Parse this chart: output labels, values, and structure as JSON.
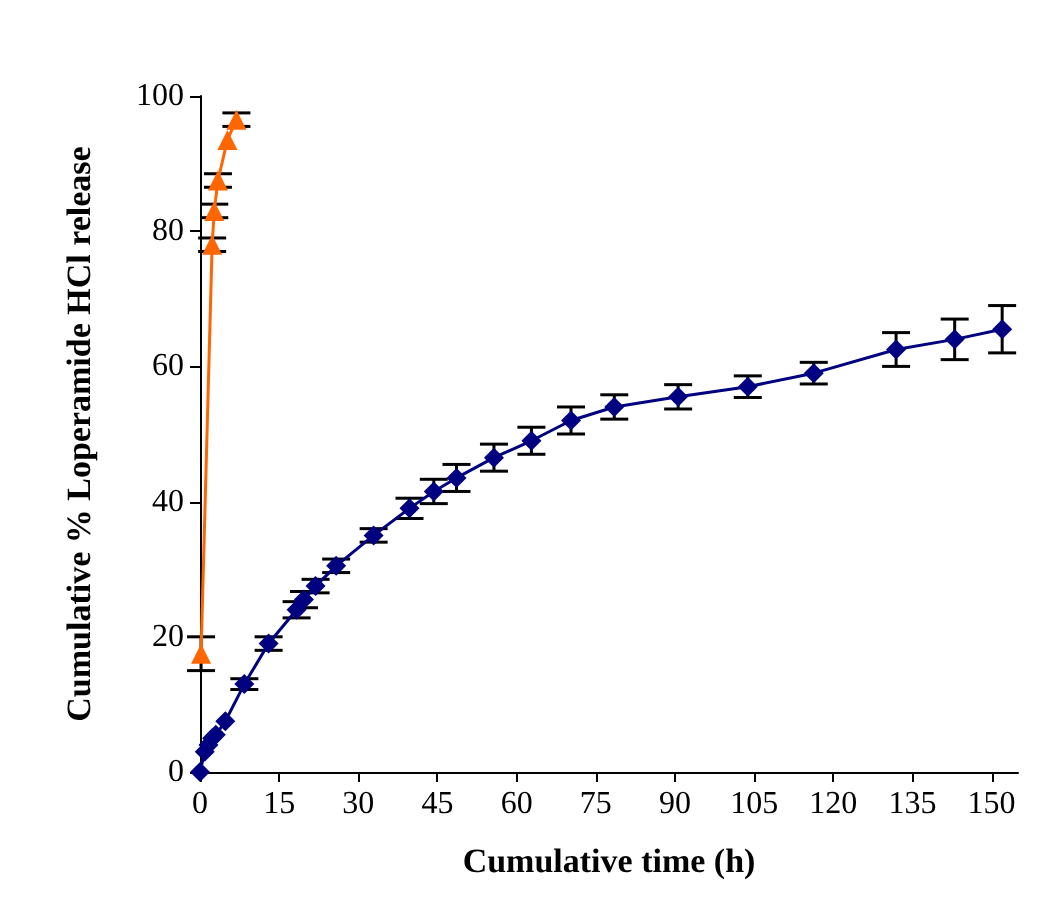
{
  "chart_data": {
    "type": "line",
    "xlabel": "Cumulative time (h)",
    "ylabel": "Cumulative % Loperamide HCl release",
    "xlim": [
      0,
      155
    ],
    "xticks": [
      0,
      15,
      30,
      45,
      60,
      75,
      90,
      105,
      120,
      135,
      150
    ],
    "ylim": [
      0,
      100
    ],
    "yticks": [
      0,
      20,
      40,
      60,
      80,
      100
    ],
    "grid": false,
    "series": [
      {
        "color": "#000080",
        "marker": "diamond",
        "x": [
          0,
          0.9,
          1.6,
          2.3,
          3,
          4.8,
          8.4,
          13,
          18.3,
          19.7,
          21.9,
          25.8,
          32.9,
          39.7,
          44.3,
          48.6,
          55.7,
          62.8,
          70.3,
          78.5,
          90.6,
          103.8,
          116.3,
          131.9,
          143,
          152
        ],
        "values": [
          0,
          3,
          4,
          5,
          5.5,
          7.5,
          13,
          19,
          24,
          25.5,
          27.5,
          30.5,
          35,
          39,
          41.5,
          43.5,
          46.5,
          49,
          52,
          54,
          55.5,
          57,
          59,
          62.5,
          64,
          65.5
        ],
        "errors": [
          null,
          null,
          null,
          null,
          null,
          null,
          0.8,
          1,
          1.2,
          1.2,
          1,
          1,
          1,
          1.5,
          1.8,
          2,
          2,
          2,
          2,
          1.8,
          1.8,
          1.6,
          1.6,
          2.5,
          3,
          3.5
        ]
      },
      {
        "color": "#ff6600",
        "marker": "triangle",
        "x": [
          0.2,
          2.3,
          2.7,
          3.4,
          5.2,
          6.9
        ],
        "values": [
          17.5,
          78,
          83,
          87.5,
          93.5,
          96.5
        ],
        "errors": [
          2.5,
          1,
          1,
          1,
          null,
          1
        ]
      }
    ]
  }
}
